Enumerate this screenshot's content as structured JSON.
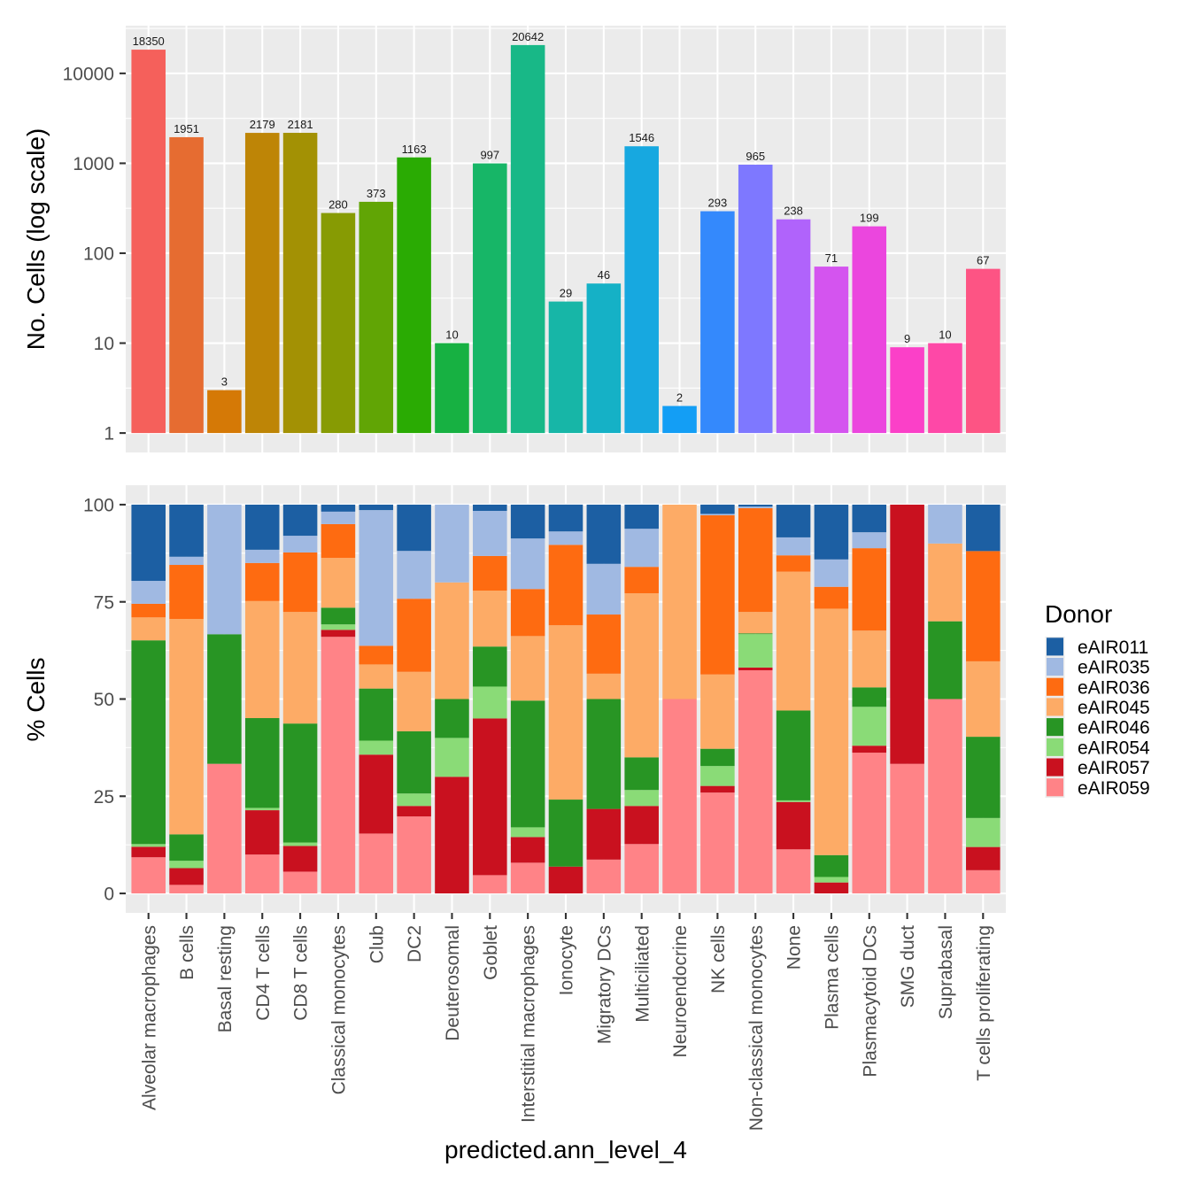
{
  "chart_data": [
    {
      "type": "bar",
      "panel": "top",
      "title": "",
      "xlabel": "",
      "ylabel": "No. Cells (log scale)",
      "yscale": "log10",
      "ylim": [
        0.6085,
        33916
      ],
      "yticks": [
        1,
        10,
        100,
        1000,
        10000
      ],
      "ytick_labels": [
        "1",
        "10",
        "100",
        "1000",
        "10000"
      ],
      "grid": true,
      "show_x_tick_labels": false,
      "categories": [
        "Alveolar macrophages",
        "B cells",
        "Basal resting",
        "CD4 T cells",
        "CD8 T cells",
        "Classical monocytes",
        "Club",
        "DC2",
        "Deuterosomal",
        "Goblet",
        "Interstitial macrophages",
        "Ionocyte",
        "Migratory DCs",
        "Multiciliated",
        "Neuroendocrine",
        "NK cells",
        "Non-classical monocytes",
        "None",
        "Plasma cells",
        "Plasmacytoid DCs",
        "SMG duct",
        "Suprabasal",
        "T cells proliferating"
      ],
      "values": [
        18350,
        1951,
        3,
        2179,
        2181,
        280,
        373,
        1163,
        10,
        997,
        20642,
        29,
        46,
        1546,
        2,
        293,
        965,
        238,
        71,
        199,
        9,
        10,
        67
      ],
      "value_labels": [
        "18350",
        "1951",
        "3",
        "2179",
        "2181",
        "280",
        "373",
        "1163",
        "10",
        "997",
        "20642",
        "29",
        "46",
        "1546",
        "2",
        "293",
        "965",
        "238",
        "71",
        "199",
        "9",
        "10",
        "67"
      ],
      "colors": [
        "#F5605B",
        "#E66C31",
        "#D57906",
        "#BE8506",
        "#A39104",
        "#879B03",
        "#61A505",
        "#2AAB03",
        "#17B142",
        "#17B667",
        "#18B887",
        "#17B6A7",
        "#15B1C6",
        "#17A8E0",
        "#139EF5",
        "#3489FC",
        "#7E78FF",
        "#B063FB",
        "#D454EF",
        "#EB46DE",
        "#FB40C8",
        "#FE48A7",
        "#FD5484"
      ]
    },
    {
      "type": "bar",
      "stacked": true,
      "panel": "bottom",
      "title": "",
      "xlabel": "predicted.ann_level_4",
      "ylabel": "% Cells",
      "ylim": [
        -5,
        105
      ],
      "yticks": [
        0,
        25,
        50,
        75,
        100
      ],
      "ytick_labels": [
        "0",
        "25",
        "50",
        "75",
        "100"
      ],
      "grid": true,
      "categories": [
        "Alveolar macrophages",
        "B cells",
        "Basal resting",
        "CD4 T cells",
        "CD8 T cells",
        "Classical monocytes",
        "Club",
        "DC2",
        "Deuterosomal",
        "Goblet",
        "Interstitial macrophages",
        "Ionocyte",
        "Migratory DCs",
        "Multiciliated",
        "Neuroendocrine",
        "NK cells",
        "Non-classical monocytes",
        "None",
        "Plasma cells",
        "Plasmacytoid DCs",
        "SMG duct",
        "Suprabasal",
        "T cells proliferating"
      ],
      "series": [
        {
          "name": "eAIR011",
          "color": "#1C5FA3",
          "values": [
            19.6,
            13.4,
            0,
            11.6,
            8.0,
            1.8,
            1.4,
            11.9,
            0,
            1.6,
            8.7,
            6.9,
            15.22,
            6.2,
            0,
            2.39,
            0.5,
            8.4,
            14.08,
            7.1,
            0,
            0,
            11.94
          ]
        },
        {
          "name": "eAIR035",
          "color": "#A0B9E2",
          "values": [
            5.9,
            2.1,
            33.33,
            3.4,
            4.3,
            3.2,
            34.9,
            12.3,
            20,
            11.6,
            13.0,
            3.45,
            13.04,
            9.8,
            0,
            0.34,
            0.4,
            4.62,
            7.04,
            4.1,
            0,
            10,
            0
          ]
        },
        {
          "name": "eAIR036",
          "color": "#FE6B11",
          "values": [
            3.5,
            13.9,
            0,
            9.8,
            15.3,
            8.7,
            4.8,
            18.8,
            0,
            8.9,
            12.1,
            20.69,
            15.22,
            6.8,
            0,
            40.96,
            26.7,
            4.2,
            5.63,
            21.2,
            0,
            0,
            28.36
          ]
        },
        {
          "name": "eAIR045",
          "color": "#FDAB66",
          "values": [
            5.9,
            55.4,
            0,
            30.1,
            28.7,
            12.8,
            6.2,
            15.3,
            30,
            14.4,
            16.6,
            44.83,
            6.52,
            42.2,
            50,
            19.11,
            5.5,
            35.71,
            63.38,
            14.6,
            0,
            20,
            19.4
          ]
        },
        {
          "name": "eAIR046",
          "color": "#289524",
          "values": [
            52.4,
            6.8,
            33.33,
            23.1,
            30.6,
            4.3,
            13.4,
            16.0,
            10,
            10.3,
            32.6,
            17.24,
            28.26,
            8.4,
            0,
            4.44,
            0.2,
            23.11,
            5.63,
            5.0,
            0,
            20,
            20.9
          ]
        },
        {
          "name": "eAIR054",
          "color": "#8ADB77",
          "values": [
            0.7,
            1.9,
            0,
            0.6,
            0.9,
            1.4,
            3.6,
            3.2,
            10,
            8.2,
            2.5,
            0,
            0,
            4.1,
            0,
            5.12,
            8.6,
            0.42,
            1.41,
            10.0,
            0,
            0,
            7.46
          ]
        },
        {
          "name": "eAIR057",
          "color": "#C9111F",
          "values": [
            2.7,
            4.3,
            0,
            11.4,
            6.6,
            1.8,
            20.3,
            2.7,
            30,
            40.3,
            6.6,
            6.9,
            13.04,
            9.8,
            0,
            1.71,
            0.7,
            12.18,
            2.82,
            1.8,
            66.67,
            0,
            5.97
          ]
        },
        {
          "name": "eAIR059",
          "color": "#FF8387",
          "values": [
            9.3,
            2.2,
            33.34,
            10.0,
            5.6,
            66.0,
            15.4,
            19.8,
            0,
            4.7,
            7.9,
            0,
            8.7,
            12.7,
            50,
            25.94,
            57.4,
            11.34,
            0,
            36.2,
            33.33,
            50,
            5.97
          ]
        }
      ],
      "legend": {
        "title": "Donor",
        "position": "right"
      }
    }
  ]
}
